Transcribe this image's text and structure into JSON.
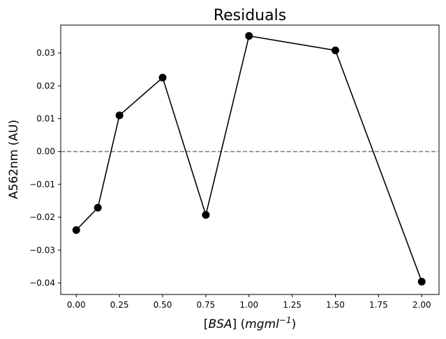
{
  "chart_data": {
    "type": "line",
    "title": "Residuals",
    "xlabel": {
      "bracket_open": "[",
      "name": "BSA",
      "bracket_close": "]",
      "unit_open": " (",
      "unit": "mgml",
      "unit_exp": "−1",
      "unit_close": ")"
    },
    "ylabel": "A562nm (AU)",
    "xlim": [
      -0.09,
      2.1
    ],
    "ylim": [
      -0.0435,
      0.0385
    ],
    "x_ticks": [
      0.0,
      0.25,
      0.5,
      0.75,
      1.0,
      1.25,
      1.5,
      1.75,
      2.0
    ],
    "x_tick_labels": [
      "0.00",
      "0.25",
      "0.50",
      "0.75",
      "1.00",
      "1.25",
      "1.50",
      "1.75",
      "2.00"
    ],
    "y_ticks": [
      -0.04,
      -0.03,
      -0.02,
      -0.01,
      0.0,
      0.01,
      0.02,
      0.03
    ],
    "y_tick_labels": [
      "−0.04",
      "−0.03",
      "−0.02",
      "−0.01",
      "0.00",
      "0.01",
      "0.02",
      "0.03"
    ],
    "grid": false,
    "reference_line": {
      "y": 0.0,
      "style": "dashed",
      "color": "#808080"
    },
    "series": [
      {
        "color": "#000000",
        "marker": "circle",
        "x": [
          0.0,
          0.125,
          0.25,
          0.5,
          0.75,
          1.0,
          1.5,
          2.0
        ],
        "y": [
          -0.0239,
          -0.0171,
          0.011,
          0.0225,
          -0.0193,
          0.0352,
          0.0308,
          -0.0396
        ]
      }
    ]
  }
}
